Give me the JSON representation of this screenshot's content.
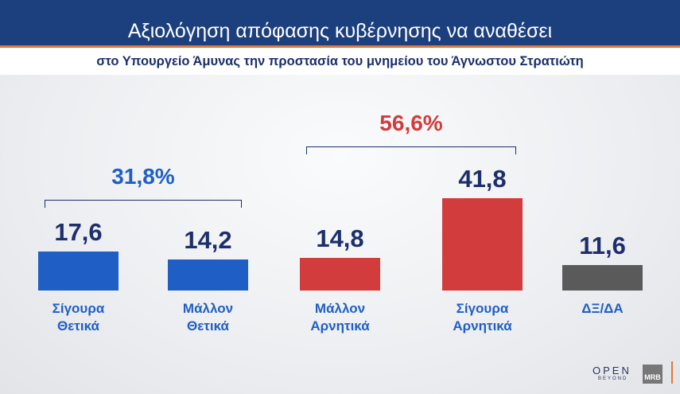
{
  "header": {
    "title": "Αξιολόγηση απόφασης κυβέρνησης να αναθέσει",
    "subtitle": "στο Υπουργείο Άμυνας την προστασία του μνημείου του Άγνωστου Στρατιώτη"
  },
  "chart_data": {
    "type": "bar",
    "categories": [
      [
        "Σίγουρα",
        "Θετικά"
      ],
      [
        "Μάλλον",
        "Θετικά"
      ],
      [
        "Μάλλον",
        "Αρνητικά"
      ],
      [
        "Σίγουρα",
        "Αρνητικά"
      ],
      [
        "ΔΞ/ΔΑ"
      ]
    ],
    "values": [
      17.6,
      14.2,
      14.8,
      41.8,
      11.6
    ],
    "value_labels": [
      "17,6",
      "14,2",
      "14,8",
      "41,8",
      "11,6"
    ],
    "colors": [
      "#1f5fc5",
      "#1f5fc5",
      "#d23c3c",
      "#d23c3c",
      "#5a5a5a"
    ],
    "groups": [
      {
        "label": "31,8%",
        "from": 0,
        "to": 1,
        "color": "#1f5fc5"
      },
      {
        "label": "56,6%",
        "from": 2,
        "to": 3,
        "color": "#d23c3c"
      }
    ]
  },
  "logos": {
    "open": "OPEN",
    "beyond": "BEYOND",
    "mrb": "MRB"
  }
}
